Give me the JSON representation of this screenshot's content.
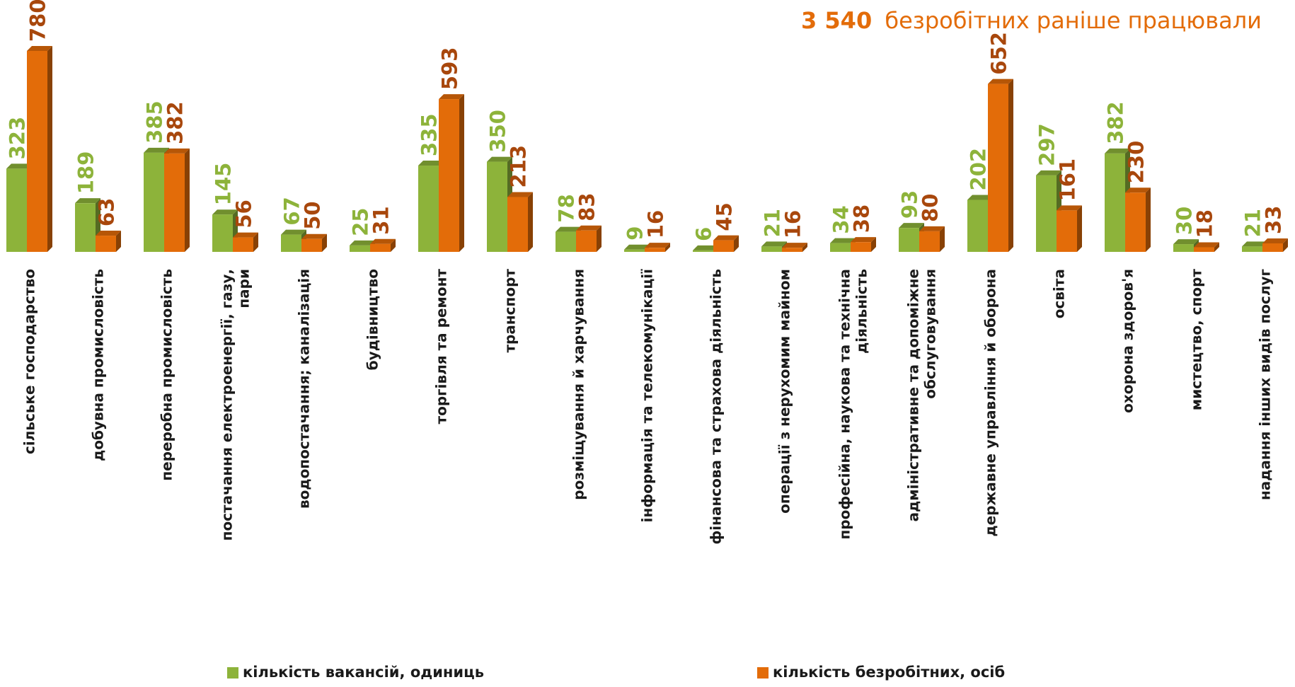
{
  "chart_data": {
    "type": "bar3d",
    "title_highlight": "3 540",
    "title": "безробітних раніше працювали",
    "title_color": "#e36c09",
    "categories": [
      "сільське господарство",
      "добувна промисловість",
      "переробна промисловість",
      "постачання електроенергії, газу, пари",
      "водопостачання; каналізація",
      "будівництво",
      "торгівля та ремонт",
      "транспорт",
      "розміщування й харчування",
      "інформація та телекомунікації",
      "фінансова та страхова діяльність",
      "операції з нерухомим майном",
      "професійна, наукова та технічна діяльність",
      "адміністративне та допоміжне обслуговування",
      "державне управління й оборона",
      "освіта",
      "охорона здоров'я",
      "мистецтво, спорт",
      "надання інших видів послуг"
    ],
    "series": [
      {
        "name": "кількість вакансій, одиниць",
        "color": "#8db33a",
        "label_color": "#8db33a",
        "values": [
          323,
          189,
          385,
          145,
          67,
          25,
          335,
          350,
          78,
          9,
          6,
          21,
          34,
          93,
          202,
          297,
          382,
          30,
          21
        ]
      },
      {
        "name": "кількість безробітних, осіб",
        "color": "#e36c09",
        "label_color": "#a8470c",
        "values": [
          780,
          63,
          382,
          56,
          50,
          31,
          593,
          213,
          83,
          16,
          45,
          16,
          38,
          80,
          652,
          161,
          230,
          18,
          33
        ]
      }
    ],
    "legend": "bottom"
  }
}
